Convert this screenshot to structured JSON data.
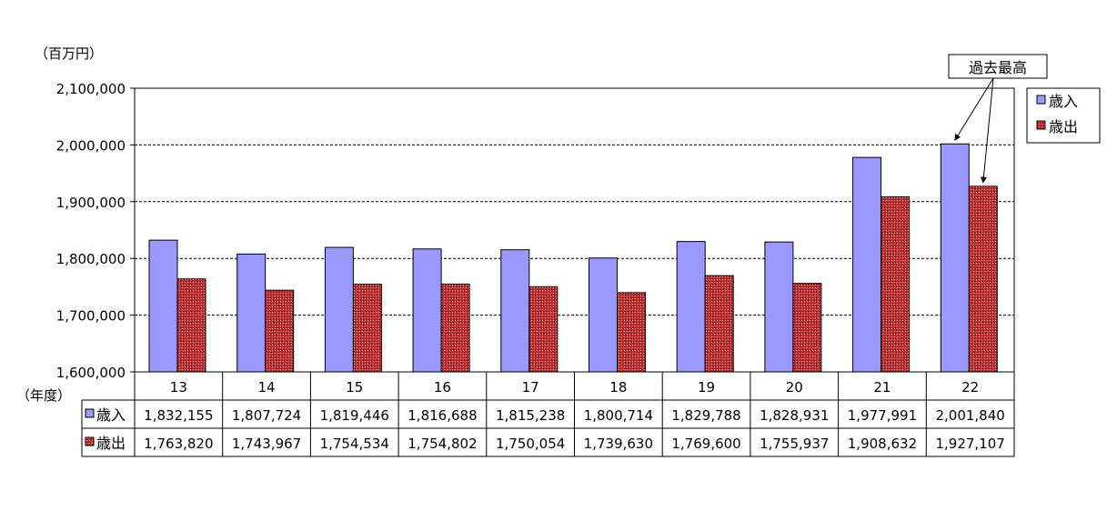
{
  "chart_data": {
    "type": "bar",
    "unit_label": "（百万円）",
    "xlabel": "（年度）",
    "categories": [
      "13",
      "14",
      "15",
      "16",
      "17",
      "18",
      "19",
      "20",
      "21",
      "22"
    ],
    "series": [
      {
        "name": "歳入",
        "color": "#9999ff",
        "values": [
          1832155,
          1807724,
          1819446,
          1816688,
          1815238,
          1800714,
          1829788,
          1828931,
          1977991,
          2001840
        ],
        "table_values": [
          "1,832,155",
          "1,807,724",
          "1,819,446",
          "1,816,688",
          "1,815,238",
          "1,800,714",
          "1,829,788",
          "1,828,931",
          "1,977,991",
          "2,001,840"
        ]
      },
      {
        "name": "歳出",
        "color": "#cc2a2a",
        "values": [
          1763820,
          1743967,
          1754534,
          1754802,
          1750054,
          1739630,
          1769600,
          1755937,
          1908632,
          1927107
        ],
        "table_values": [
          "1,763,820",
          "1,743,967",
          "1,754,534",
          "1,754,802",
          "1,750,054",
          "1,739,630",
          "1,769,600",
          "1,755,937",
          "1,908,632",
          "1,927,107"
        ]
      }
    ],
    "ylim": [
      1600000,
      2100000
    ],
    "yticks": [
      1600000,
      1700000,
      1800000,
      1900000,
      2000000,
      2100000
    ],
    "ytick_labels": [
      "1,600,000",
      "1,700,000",
      "1,800,000",
      "1,900,000",
      "2,000,000",
      "2,100,000"
    ],
    "grid": true,
    "legend_position": "right",
    "annotation": {
      "text": "過去最高",
      "targets": [
        {
          "series": 0,
          "category": "22"
        },
        {
          "series": 1,
          "category": "22"
        }
      ]
    }
  }
}
